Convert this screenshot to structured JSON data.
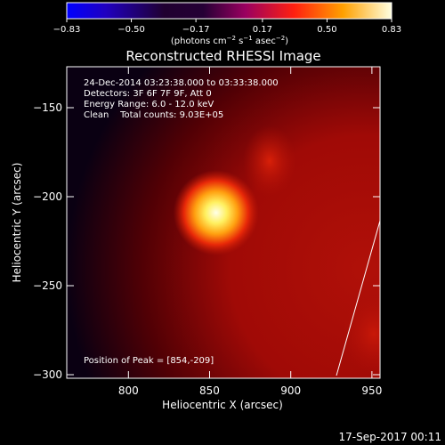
{
  "chart_data": {
    "type": "heatmap",
    "title": "Reconstructed RHESSI Image",
    "xlabel": "Heliocentric X (arcsec)",
    "ylabel": "Heliocentric Y (arcsec)",
    "xlim": [
      762,
      955
    ],
    "ylim": [
      -302,
      -127
    ],
    "x_ticks": [
      800,
      850,
      900,
      950
    ],
    "x_tick_labels": [
      "800",
      "850",
      "900",
      "950"
    ],
    "y_ticks": [
      -150,
      -200,
      -250,
      -300
    ],
    "y_tick_labels": [
      "−150",
      "−200",
      "−250",
      "−300"
    ],
    "colorbar": {
      "range": [
        -0.83,
        0.83
      ],
      "ticks": [
        -0.83,
        -0.5,
        -0.17,
        0.17,
        0.5,
        0.83
      ],
      "tick_labels": [
        "−0.83",
        "−0.50",
        "−0.17",
        "0.17",
        "0.50",
        "0.83"
      ],
      "unit_label": "(photons cm",
      "unit_sup1": "−2",
      "unit_mid": " s",
      "unit_sup2": "−1",
      "unit_mid2": " asec",
      "unit_sup3": "−2",
      "unit_end": ")"
    },
    "peak": {
      "x": 854,
      "y": -209
    },
    "secondary_source": {
      "x": 887,
      "y": -180
    },
    "annotations": {
      "time_range": "24-Dec-2014 03:23:38.000 to 03:33:38.000",
      "detectors": "Detectors: 3F 6F 7F 9F, Att 0",
      "energy": "Energy Range: 6.0 - 12.0 keV",
      "clean": "Clean    Total counts: 9.03E+05",
      "peak_position": "Position of Peak = [854,-209]"
    },
    "footer_date": "17-Sep-2017 00:11"
  }
}
